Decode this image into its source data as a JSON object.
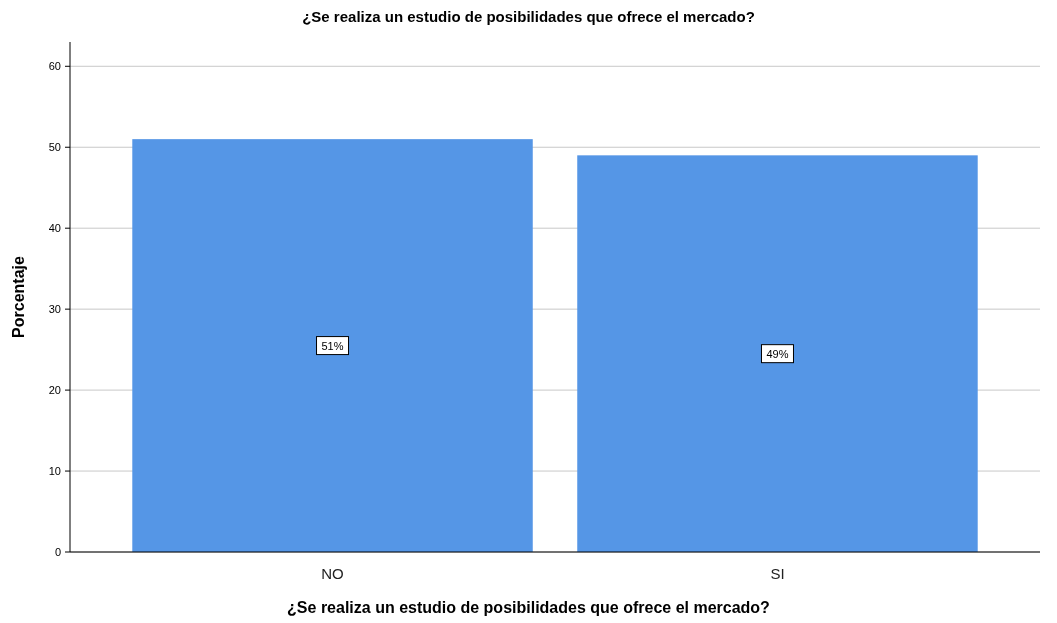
{
  "chart_data": {
    "type": "bar",
    "title": "¿Se realiza un estudio de posibilidades que ofrece el mercado?",
    "xlabel": "¿Se realiza un estudio de posibilidades que ofrece el mercado?",
    "ylabel": "Porcentaje",
    "categories": [
      "NO",
      "SI"
    ],
    "values": [
      51,
      49
    ],
    "value_labels": [
      "51%",
      "49%"
    ],
    "color": "#5596e6",
    "ylim": [
      0,
      63
    ],
    "yticks": [
      0,
      10,
      20,
      30,
      40,
      50,
      60
    ],
    "grid": "y"
  }
}
